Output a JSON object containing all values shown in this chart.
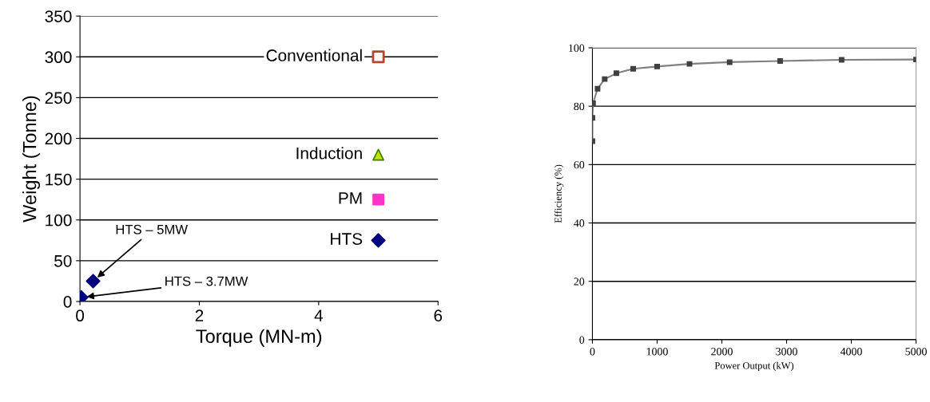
{
  "chart_data": [
    {
      "type": "scatter",
      "xlabel": "Torque (MN-m)",
      "ylabel": "Weight (Tonne)",
      "xlim": [
        0,
        6
      ],
      "xticks": [
        0,
        2,
        4,
        6
      ],
      "ylim": [
        0,
        350
      ],
      "yticks": [
        0,
        50,
        100,
        150,
        200,
        250,
        300,
        350
      ],
      "grid": "y",
      "legend": false,
      "series": [
        {
          "name": "Conventional",
          "color": "#b5462b",
          "marker": "square",
          "x": [
            5
          ],
          "values": [
            300
          ]
        },
        {
          "name": "Induction",
          "color": "#c8e000",
          "marker": "triangle",
          "x": [
            5
          ],
          "values": [
            180
          ]
        },
        {
          "name": "PM",
          "color": "#ff33cc",
          "marker": "square",
          "x": [
            5
          ],
          "values": [
            125
          ]
        },
        {
          "name": "HTS",
          "color": "#000080",
          "marker": "diamond",
          "x": [
            5,
            0.22,
            0.02
          ],
          "values": [
            75,
            25,
            5
          ]
        }
      ],
      "annotations": [
        {
          "text": "HTS – 5MW",
          "x": 0.22,
          "y": 25
        },
        {
          "text": "HTS – 3.7MW",
          "x": 0.02,
          "y": 5
        }
      ]
    },
    {
      "type": "line",
      "xlabel": "Power Output (kW)",
      "ylabel": "Efficiency (%)",
      "xlim": [
        0,
        5000
      ],
      "xticks": [
        0,
        1000,
        2000,
        3000,
        4000,
        5000
      ],
      "ylim": [
        0,
        100
      ],
      "yticks": [
        0,
        20,
        40,
        60,
        80,
        100
      ],
      "grid": "y",
      "legend": false,
      "marker": "square",
      "series": [
        {
          "color": "#808080",
          "x": [
            0,
            0,
            10,
            80,
            190,
            370,
            630,
            1000,
            1500,
            2120,
            2900,
            3850,
            5000
          ],
          "values": [
            68,
            76,
            81,
            86,
            89.3,
            91.3,
            92.8,
            93.6,
            94.5,
            95.1,
            95.5,
            95.9,
            96
          ]
        }
      ]
    }
  ]
}
